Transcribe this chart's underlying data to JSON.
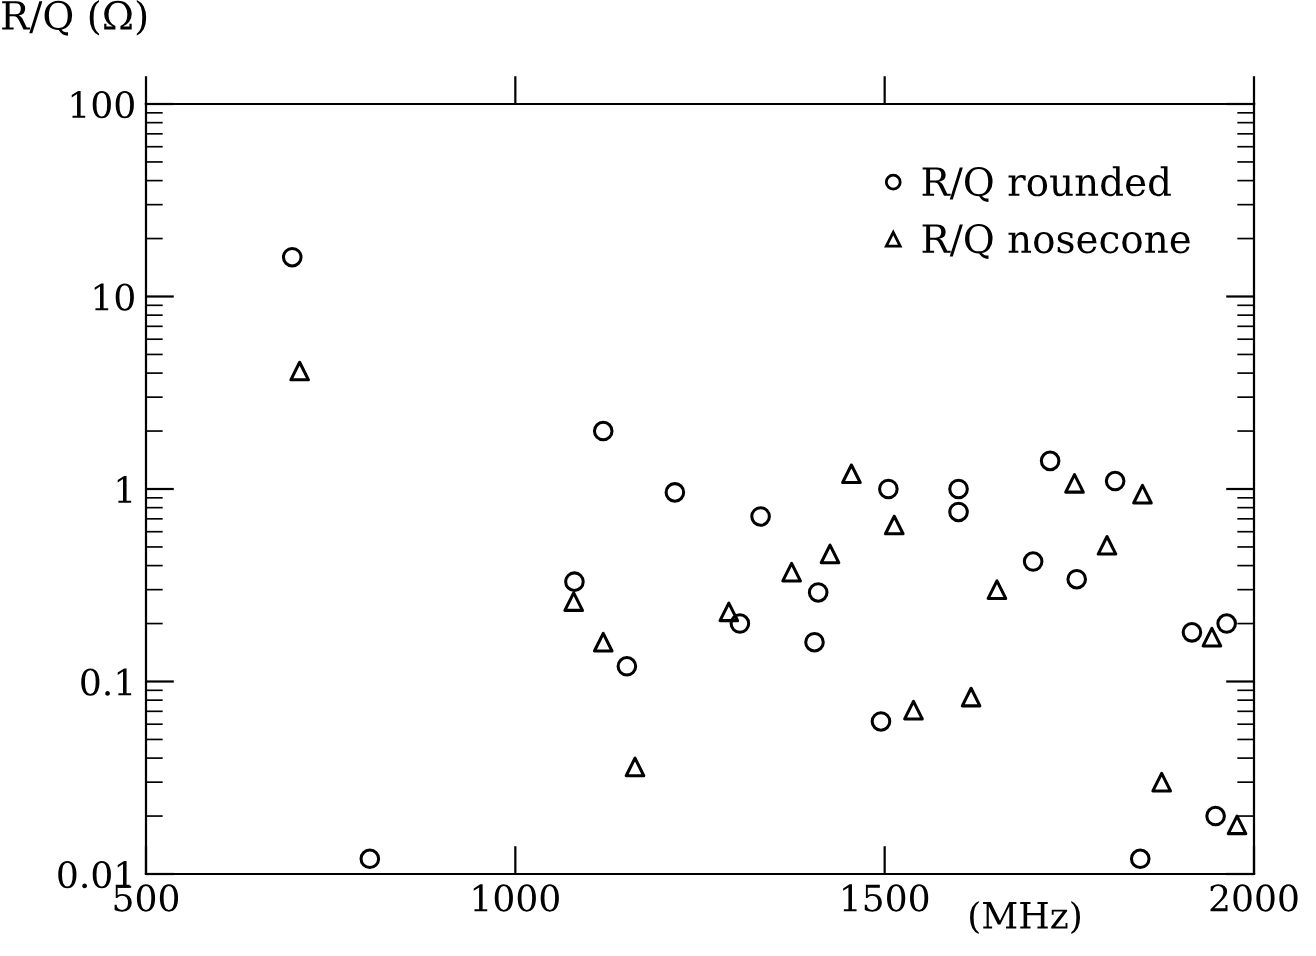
{
  "chart_data": {
    "type": "scatter",
    "xlabel": "(MHz)",
    "ylabel": "R/Q (Ω)",
    "log": "y",
    "xlim": [
      500,
      2000
    ],
    "ylim": [
      0.01,
      100
    ],
    "xticks": [
      500,
      1000,
      1500,
      2000
    ],
    "yticks": [
      0.01,
      0.1,
      1,
      10,
      100
    ],
    "grid": false,
    "legend": "top right",
    "series": [
      {
        "name": "R/Q rounded",
        "color": "#000000",
        "marker": "circle",
        "x": [
          698,
          803,
          1080,
          1119,
          1151,
          1216,
          1332,
          1304,
          1410,
          1405,
          1505,
          1495,
          1600,
          1600,
          1701,
          1724,
          1760,
          1812,
          1846,
          1916,
          1963,
          1948
        ],
        "values": [
          16,
          0.012,
          0.33,
          2.0,
          0.12,
          0.96,
          0.72,
          0.2,
          0.29,
          0.16,
          1.0,
          0.062,
          1.0,
          0.76,
          0.42,
          1.4,
          0.34,
          1.1,
          0.012,
          0.18,
          0.2,
          0.02
        ]
      },
      {
        "name": "R/Q nosecone",
        "color": "#000000",
        "marker": "triangle",
        "x": [
          708,
          1079,
          1119,
          1162,
          1289,
          1374,
          1426,
          1455,
          1513,
          1539,
          1617,
          1652,
          1757,
          1801,
          1849,
          1875,
          1943,
          1977
        ],
        "values": [
          4.1,
          0.26,
          0.16,
          0.036,
          0.23,
          0.37,
          0.46,
          1.2,
          0.65,
          0.071,
          0.083,
          0.3,
          1.07,
          0.51,
          0.94,
          0.03,
          0.17,
          0.018
        ]
      }
    ]
  }
}
